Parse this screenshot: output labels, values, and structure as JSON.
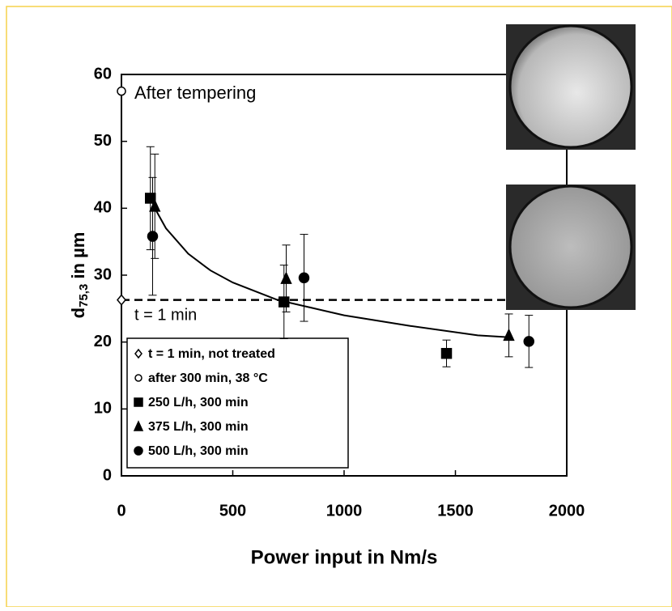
{
  "chart_data": {
    "type": "scatter",
    "x_label": "Power input in Nm/s",
    "y_label": [
      "d",
      "75,3",
      " in µm"
    ],
    "xlim": [
      0,
      2000
    ],
    "xticks": [
      0,
      500,
      1000,
      1500,
      2000
    ],
    "ylim": [
      0,
      60
    ],
    "yticks": [
      0,
      10,
      20,
      30,
      40,
      50,
      60
    ],
    "series": [
      {
        "name": "t = 1 min, not treated",
        "marker": "diamond-open",
        "color": "#000000",
        "x": [
          0
        ],
        "values": [
          26.3
        ],
        "errors": [
          null
        ]
      },
      {
        "name": "after 300 min, 38 °C",
        "marker": "circle-open",
        "color": "#000000",
        "x": [
          0
        ],
        "values": [
          57.5
        ],
        "errors": [
          null
        ]
      },
      {
        "name": "250 L/h, 300 min",
        "marker": "square",
        "color": "#000000",
        "x": [
          130,
          730,
          1460
        ],
        "values": [
          41.5,
          26,
          18.3
        ],
        "errors": [
          7.7,
          5.5,
          2
        ]
      },
      {
        "name": "375 L/h, 300 min",
        "marker": "triangle",
        "color": "#000000",
        "x": [
          150,
          740,
          1740
        ],
        "values": [
          40.3,
          29.5,
          21
        ],
        "errors": [
          7.8,
          5,
          3.2
        ]
      },
      {
        "name": "500 L/h, 300 min",
        "marker": "circle",
        "color": "#000000",
        "x": [
          140,
          820,
          1830
        ],
        "values": [
          35.8,
          29.6,
          20.1
        ],
        "errors": [
          8.8,
          6.5,
          3.9
        ]
      }
    ],
    "fit": {
      "x": [
        150,
        200,
        300,
        400,
        500,
        700,
        1000,
        1300,
        1600,
        1750
      ],
      "values": [
        40,
        37,
        33.2,
        30.7,
        28.9,
        26.3,
        24,
        22.4,
        21,
        20.7
      ]
    },
    "reference_line": {
      "value": 26.3,
      "label": "t = 1 min"
    },
    "annotation": "After tempering"
  }
}
